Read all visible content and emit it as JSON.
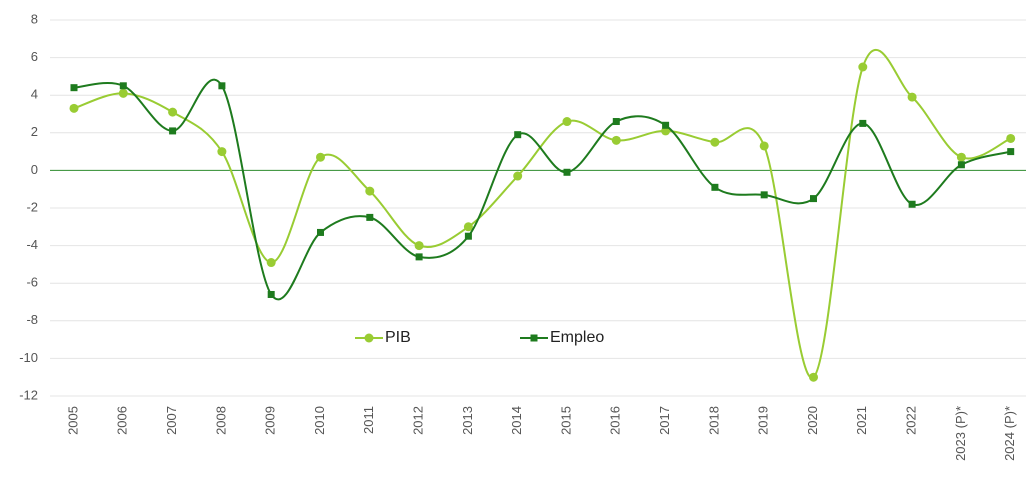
{
  "chart_data": {
    "type": "line",
    "categories": [
      "2005",
      "2006",
      "2007",
      "2008",
      "2009",
      "2010",
      "2011",
      "2012",
      "2013",
      "2014",
      "2015",
      "2016",
      "2017",
      "2018",
      "2019",
      "2020",
      "2021",
      "2022",
      "2023 (P)*",
      "2024 (P)*"
    ],
    "series": [
      {
        "name": "PIB",
        "color": "#99cc33",
        "marker": "circle",
        "values": [
          3.3,
          4.1,
          3.1,
          1.0,
          -4.9,
          0.7,
          -1.1,
          -4.0,
          -3.0,
          -0.3,
          2.6,
          1.6,
          2.1,
          1.5,
          1.3,
          -11.0,
          5.5,
          3.9,
          0.7,
          1.7
        ]
      },
      {
        "name": "Empleo",
        "color": "#1e7b1e",
        "marker": "square",
        "values": [
          4.4,
          4.5,
          2.1,
          4.5,
          -6.6,
          -3.3,
          -2.5,
          -4.6,
          -3.5,
          1.9,
          -0.1,
          2.6,
          2.4,
          -0.9,
          -1.3,
          -1.5,
          2.5,
          -1.8,
          0.3,
          1.0
        ]
      }
    ],
    "ylim": [
      -12,
      8
    ],
    "yticks": [
      -12,
      -10,
      -8,
      -6,
      -4,
      -2,
      0,
      2,
      4,
      6,
      8
    ],
    "grid": true,
    "legend": "bottom"
  }
}
